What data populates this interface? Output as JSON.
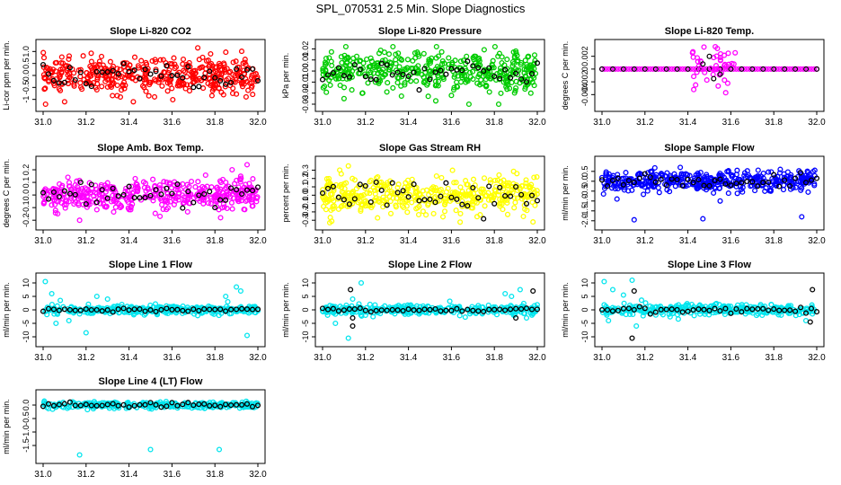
{
  "page_title": "SPL_070531  2.5 Min. Slope Diagnostics",
  "colors": {
    "red": "#ff0000",
    "green": "#00cc00",
    "magenta": "#ff00ff",
    "yellow": "#ffff00",
    "blue": "#0000ff",
    "cyan": "#00e5ee",
    "black": "#000000"
  },
  "chart_data": [
    {
      "id": "co2",
      "type": "scatter",
      "title": "Slope Li-820 CO2",
      "ylabel": "Li-cor ppm per min.",
      "xlim": [
        31.0,
        32.0
      ],
      "ylim": [
        -1.2,
        1.2
      ],
      "yticks": [
        -1.0,
        -0.5,
        0.0,
        0.5,
        1.0
      ],
      "ytick_labels": [
        "-1",
        "-0.5",
        "0.0",
        "0.5",
        "1.0"
      ],
      "color": "red",
      "dense": {
        "n": 420,
        "spread": 0.35
      },
      "extras": [
        [
          31.25,
          -0.6
        ],
        [
          31.36,
          -0.9
        ],
        [
          31.42,
          -1.1
        ],
        [
          31.47,
          -0.5
        ],
        [
          31.72,
          1.15
        ],
        [
          31.78,
          0.9
        ],
        [
          31.1,
          -1.1
        ],
        [
          31.58,
          -0.65
        ],
        [
          31.83,
          -0.7
        ]
      ],
      "black_spread": 0.25
    },
    {
      "id": "pressure",
      "type": "scatter",
      "title": "Slope Li-820 Pressure",
      "ylabel": "kPa per min.",
      "xlim": [
        31.0,
        32.0
      ],
      "ylim": [
        -0.03,
        0.022
      ],
      "yticks": [
        -0.03,
        -0.02,
        -0.01,
        0.0,
        0.01,
        0.02
      ],
      "ytick_labels": [
        "-0.03",
        "-0.02",
        "-0.01",
        "0.00",
        "0.01",
        "0.02"
      ],
      "color": "green",
      "dense": {
        "n": 420,
        "spread": 0.009
      },
      "extras": [
        [
          31.1,
          -0.025
        ],
        [
          31.82,
          -0.03
        ],
        [
          31.9,
          0.018
        ],
        [
          31.34,
          0.015
        ],
        [
          31.97,
          -0.02
        ],
        [
          31.6,
          -0.022
        ]
      ],
      "black_spread": 0.006
    },
    {
      "id": "temp",
      "type": "scatter",
      "title": "Slope Li-820 Temp.",
      "ylabel": "degrees C per min.",
      "xlim": [
        31.0,
        32.0
      ],
      "ylim": [
        -0.0055,
        0.0035
      ],
      "yticks": [
        -0.004,
        -0.002,
        0.0,
        0.002
      ],
      "ytick_labels": [
        "-0.004",
        "-0.002",
        "0",
        "0.002"
      ],
      "color": "magenta",
      "line_mode": true,
      "cluster": {
        "x0": 31.42,
        "x1": 31.62,
        "n": 45,
        "spread": 0.002
      },
      "extras": [],
      "black_spread": 0.0
    },
    {
      "id": "boxtemp",
      "type": "scatter",
      "title": "Slope Amb. Box Temp.",
      "ylabel": "degrees C per min.",
      "xlim": [
        31.0,
        32.0
      ],
      "ylim": [
        -0.22,
        0.25
      ],
      "yticks": [
        -0.2,
        -0.1,
        0.0,
        0.1,
        0.2
      ],
      "ytick_labels": [
        "-0.2",
        "-0.1",
        "0.0",
        "0.1",
        "0.2"
      ],
      "color": "magenta",
      "dense": {
        "n": 420,
        "spread": 0.06
      },
      "extras": [
        [
          31.95,
          0.24
        ],
        [
          31.17,
          -0.2
        ],
        [
          31.88,
          0.2
        ]
      ],
      "black_spread": 0.05
    },
    {
      "id": "rh",
      "type": "scatter",
      "title": "Slope Gas Stream RH",
      "ylabel": "percent per min.",
      "xlim": [
        31.0,
        32.0
      ],
      "ylim": [
        -0.33,
        0.38
      ],
      "yticks": [
        -0.3,
        -0.2,
        -0.1,
        0.0,
        0.1,
        0.2,
        0.3
      ],
      "ytick_labels": [
        "-0.3",
        "-0.2",
        "-0.1",
        "0.0",
        "0.1",
        "0.2",
        "0.3"
      ],
      "color": "yellow",
      "dense": {
        "n": 420,
        "spread": 0.11
      },
      "extras": [
        [
          31.12,
          0.35
        ],
        [
          31.08,
          0.3
        ],
        [
          31.98,
          -0.32
        ]
      ],
      "black_spread": 0.09
    },
    {
      "id": "sample",
      "type": "scatter",
      "title": "Slope Sample Flow",
      "ylabel": "ml/min per min.",
      "xlim": [
        31.0,
        32.0
      ],
      "ylim": [
        -2.1,
        0.9
      ],
      "yticks": [
        -2.0,
        -1.5,
        -1.0,
        -0.5,
        0.0,
        0.5
      ],
      "ytick_labels": [
        "-2.0",
        "-1.5",
        "-1.0",
        "-0.5",
        "0.0",
        "0.5"
      ],
      "color": "blue",
      "dense": {
        "n": 420,
        "spread": 0.25
      },
      "extras": [
        [
          31.15,
          -1.95
        ],
        [
          31.47,
          -1.9
        ],
        [
          31.93,
          -1.8
        ],
        [
          31.07,
          -0.9
        ],
        [
          31.55,
          -1.0
        ]
      ],
      "black_spread": 0.15
    },
    {
      "id": "line1",
      "type": "scatter",
      "title": "Slope Line 1 Flow",
      "ylabel": "ml/min per min.",
      "xlim": [
        31.0,
        32.0
      ],
      "ylim": [
        -11.0,
        11.0
      ],
      "yticks": [
        -10,
        -5,
        0,
        5,
        10
      ],
      "ytick_labels": [
        "-10",
        "-5",
        "0",
        "5",
        "10"
      ],
      "color": "cyan",
      "dense": {
        "n": 330,
        "spread": 0.8
      },
      "extras": [
        [
          31.01,
          10.5
        ],
        [
          31.04,
          6.0
        ],
        [
          31.08,
          3.5
        ],
        [
          31.12,
          -4
        ],
        [
          31.2,
          -8.5
        ],
        [
          31.25,
          5
        ],
        [
          31.3,
          4
        ],
        [
          31.85,
          5
        ],
        [
          31.9,
          8.5
        ],
        [
          31.92,
          7
        ],
        [
          31.95,
          -9.5
        ],
        [
          31.86,
          3
        ],
        [
          31.06,
          -5
        ]
      ],
      "black_spread": 0.3
    },
    {
      "id": "line2",
      "type": "scatter",
      "title": "Slope Line 2 Flow",
      "ylabel": "ml/min per min.",
      "xlim": [
        31.0,
        32.0
      ],
      "ylim": [
        -11.0,
        11.0
      ],
      "yticks": [
        -10,
        -5,
        0,
        5,
        10
      ],
      "ytick_labels": [
        "-10",
        "-5",
        "0",
        "5",
        "10"
      ],
      "color": "cyan",
      "dense": {
        "n": 330,
        "spread": 0.9
      },
      "extras": [
        [
          31.12,
          -10.5
        ],
        [
          31.14,
          4
        ],
        [
          31.06,
          -5
        ],
        [
          31.2,
          -2
        ],
        [
          31.85,
          6
        ],
        [
          31.88,
          5
        ],
        [
          31.92,
          7.5
        ],
        [
          31.95,
          -3
        ],
        [
          31.18,
          10
        ]
      ],
      "black_spread": 0.4
    },
    {
      "id": "line3",
      "type": "scatter",
      "title": "Slope Line 3 Flow",
      "ylabel": "ml/min per min.",
      "xlim": [
        31.0,
        32.0
      ],
      "ylim": [
        -11.0,
        11.0
      ],
      "yticks": [
        -10,
        -5,
        0,
        5,
        10
      ],
      "ytick_labels": [
        "-10",
        "-5",
        "0",
        "5",
        "10"
      ],
      "color": "cyan",
      "dense": {
        "n": 330,
        "spread": 1.0
      },
      "extras": [
        [
          31.01,
          10.5
        ],
        [
          31.05,
          7.5
        ],
        [
          31.1,
          5.5
        ],
        [
          31.14,
          11.0
        ],
        [
          31.16,
          -6
        ],
        [
          31.03,
          -4
        ],
        [
          31.98,
          -1.5
        ],
        [
          31.95,
          -4
        ]
      ],
      "black_spread": 0.5
    },
    {
      "id": "line4",
      "type": "scatter",
      "title": "Slope Line 4 (LT) Flow",
      "ylabel": "ml/min per min.",
      "xlim": [
        31.0,
        32.0
      ],
      "ylim": [
        -1.9,
        0.3
      ],
      "yticks": [
        -1.5,
        -1.0,
        -0.5,
        0.0
      ],
      "ytick_labels": [
        "-1.5",
        "-1.0",
        "-0.5",
        "0.0"
      ],
      "color": "cyan",
      "dense": {
        "n": 300,
        "spread": 0.06
      },
      "extras": [
        [
          31.17,
          -1.85
        ],
        [
          31.5,
          -1.65
        ],
        [
          31.82,
          -1.65
        ]
      ],
      "black_spread": 0.04
    }
  ],
  "x_ticks": [
    31.0,
    31.2,
    31.4,
    31.6,
    31.8,
    32.0
  ],
  "x_tick_labels": [
    "31.0",
    "31.2",
    "31.4",
    "31.6",
    "31.8",
    "32.0"
  ]
}
